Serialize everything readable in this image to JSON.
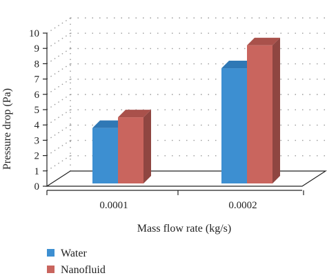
{
  "chart_data": {
    "type": "bar",
    "categories": [
      "0.0001",
      "0.0002"
    ],
    "series": [
      {
        "name": "Water",
        "values": [
          3.8,
          7.7
        ],
        "color": "#3d8fd1",
        "top_color": "#2f78b5",
        "side_color": "#2a6aa1"
      },
      {
        "name": "Nanofluid",
        "values": [
          4.5,
          9.2
        ],
        "color": "#c9655e",
        "top_color": "#a9514b",
        "side_color": "#8f4641"
      }
    ],
    "xlabel": "Mass flow rate (kg/s)",
    "ylabel": "Pressure drop (Pa)",
    "ylim": [
      0,
      10
    ],
    "yticks": [
      "0",
      "1",
      "2",
      "3",
      "4",
      "5",
      "6",
      "7",
      "8",
      "9",
      "10"
    ],
    "grid": true,
    "legend_position": "bottom-left",
    "style": "3d-clustered"
  }
}
